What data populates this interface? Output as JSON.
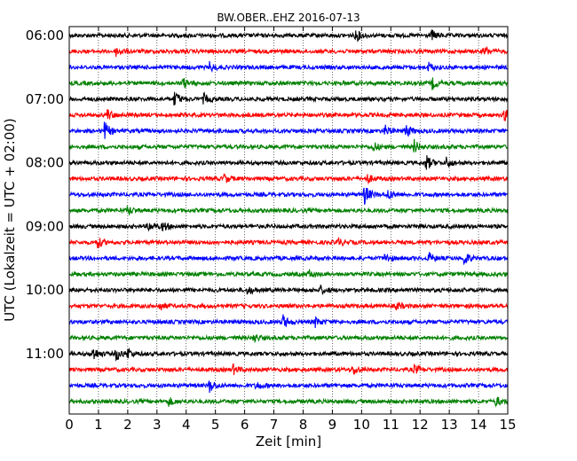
{
  "chart_data": {
    "type": "line",
    "title": "BW.OBER..EHZ 2016-07-13",
    "xlabel": "Zeit  [min]",
    "ylabel": "UTC (Lokalzeit = UTC + 02:00)",
    "xlim": [
      0,
      15
    ],
    "xticks": [
      "0",
      "1",
      "2",
      "3",
      "4",
      "5",
      "6",
      "7",
      "8",
      "9",
      "10",
      "11",
      "12",
      "13",
      "14",
      "15"
    ],
    "yticks": [
      {
        "label": "06:00",
        "row": 0
      },
      {
        "label": "07:00",
        "row": 4
      },
      {
        "label": "08:00",
        "row": 8
      },
      {
        "label": "09:00",
        "row": 12
      },
      {
        "label": "10:00",
        "row": 16
      },
      {
        "label": "11:00",
        "row": 20
      }
    ],
    "row_interval_min": 15,
    "start_time": "06:00",
    "grid": "vertical dotted",
    "colors": [
      "#000000",
      "#ff0000",
      "#0000ff",
      "#008000"
    ],
    "traces": [
      {
        "start": "06:00",
        "color": "#000000",
        "events": [
          {
            "t": 9.8,
            "amp": 1.6
          },
          {
            "t": 12.4,
            "amp": 1.3
          }
        ]
      },
      {
        "start": "06:15",
        "color": "#ff0000",
        "events": [
          {
            "t": 1.6,
            "amp": 1.2
          },
          {
            "t": 14.2,
            "amp": 1.3
          }
        ]
      },
      {
        "start": "06:30",
        "color": "#0000ff",
        "events": [
          {
            "t": 4.8,
            "amp": 1.2
          },
          {
            "t": 12.3,
            "amp": 1.2
          }
        ]
      },
      {
        "start": "06:45",
        "color": "#008000",
        "events": [
          {
            "t": 3.9,
            "amp": 1.3
          },
          {
            "t": 12.4,
            "amp": 1.6
          }
        ]
      },
      {
        "start": "07:00",
        "color": "#000000",
        "events": [
          {
            "t": 3.6,
            "amp": 2.2
          },
          {
            "t": 4.6,
            "amp": 1.4
          }
        ]
      },
      {
        "start": "07:15",
        "color": "#ff0000",
        "events": [
          {
            "t": 1.3,
            "amp": 1.5
          },
          {
            "t": 14.9,
            "amp": 2.0
          }
        ]
      },
      {
        "start": "07:30",
        "color": "#0000ff",
        "events": [
          {
            "t": 1.2,
            "amp": 2.5
          },
          {
            "t": 11.5,
            "amp": 2.0
          },
          {
            "t": 10.8,
            "amp": 1.4
          }
        ]
      },
      {
        "start": "07:45",
        "color": "#008000",
        "events": [
          {
            "t": 11.8,
            "amp": 1.8
          },
          {
            "t": 10.4,
            "amp": 1.3
          }
        ]
      },
      {
        "start": "08:00",
        "color": "#000000",
        "events": [
          {
            "t": 12.2,
            "amp": 2.2
          },
          {
            "t": 12.9,
            "amp": 1.5
          }
        ]
      },
      {
        "start": "08:15",
        "color": "#ff0000",
        "events": [
          {
            "t": 5.3,
            "amp": 1.2
          },
          {
            "t": 10.2,
            "amp": 1.1
          }
        ]
      },
      {
        "start": "08:30",
        "color": "#0000ff",
        "events": [
          {
            "t": 10.1,
            "amp": 2.8
          },
          {
            "t": 10.9,
            "amp": 1.4
          }
        ]
      },
      {
        "start": "08:45",
        "color": "#008000",
        "events": [
          {
            "t": 2.0,
            "amp": 1.2
          }
        ]
      },
      {
        "start": "09:00",
        "color": "#000000",
        "events": [
          {
            "t": 2.7,
            "amp": 1.3
          },
          {
            "t": 3.2,
            "amp": 1.2
          }
        ]
      },
      {
        "start": "09:15",
        "color": "#ff0000",
        "events": [
          {
            "t": 0.95,
            "amp": 1.6
          },
          {
            "t": 9.2,
            "amp": 1.1
          }
        ]
      },
      {
        "start": "09:30",
        "color": "#0000ff",
        "events": [
          {
            "t": 12.3,
            "amp": 1.4
          },
          {
            "t": 13.5,
            "amp": 1.8
          },
          {
            "t": 10.8,
            "amp": 1.2
          }
        ]
      },
      {
        "start": "09:45",
        "color": "#008000",
        "events": [
          {
            "t": 8.2,
            "amp": 1.1
          }
        ]
      },
      {
        "start": "10:00",
        "color": "#000000",
        "events": [
          {
            "t": 6.1,
            "amp": 1.1
          },
          {
            "t": 8.6,
            "amp": 1.1
          }
        ]
      },
      {
        "start": "10:15",
        "color": "#ff0000",
        "events": [
          {
            "t": 3.1,
            "amp": 1.1
          },
          {
            "t": 11.2,
            "amp": 1.1
          }
        ]
      },
      {
        "start": "10:30",
        "color": "#0000ff",
        "events": [
          {
            "t": 7.3,
            "amp": 2.0
          },
          {
            "t": 8.4,
            "amp": 1.4
          }
        ]
      },
      {
        "start": "10:45",
        "color": "#008000",
        "events": [
          {
            "t": 6.3,
            "amp": 1.2
          }
        ]
      },
      {
        "start": "11:00",
        "color": "#000000",
        "events": [
          {
            "t": 0.8,
            "amp": 2.0
          },
          {
            "t": 1.6,
            "amp": 1.8
          },
          {
            "t": 2.0,
            "amp": 1.5
          }
        ]
      },
      {
        "start": "11:15",
        "color": "#ff0000",
        "events": [
          {
            "t": 5.6,
            "amp": 1.3
          },
          {
            "t": 9.7,
            "amp": 1.3
          },
          {
            "t": 11.8,
            "amp": 1.2
          }
        ]
      },
      {
        "start": "11:30",
        "color": "#0000ff",
        "events": [
          {
            "t": 4.8,
            "amp": 1.8
          },
          {
            "t": 6.4,
            "amp": 1.1
          }
        ]
      },
      {
        "start": "11:45",
        "color": "#008000",
        "events": [
          {
            "t": 3.4,
            "amp": 1.1
          },
          {
            "t": 14.6,
            "amp": 1.2
          }
        ]
      }
    ]
  }
}
